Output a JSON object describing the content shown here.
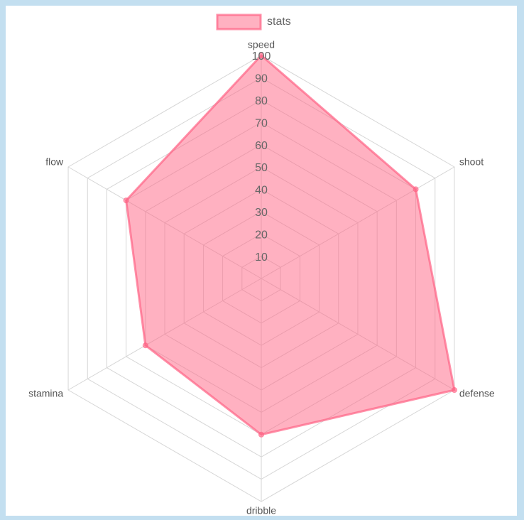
{
  "chart_data": {
    "type": "radar",
    "categories": [
      "speed",
      "shoot",
      "defense",
      "dribble",
      "stamina",
      "flow"
    ],
    "series": [
      {
        "name": "stats",
        "color": "#ff6384",
        "values": [
          100,
          80,
          100,
          70,
          60,
          70
        ]
      }
    ],
    "ylim": [
      0,
      100
    ],
    "yticks": [
      10,
      20,
      30,
      40,
      50,
      60,
      70,
      80,
      90,
      100
    ],
    "grid": true,
    "legend": "top"
  }
}
